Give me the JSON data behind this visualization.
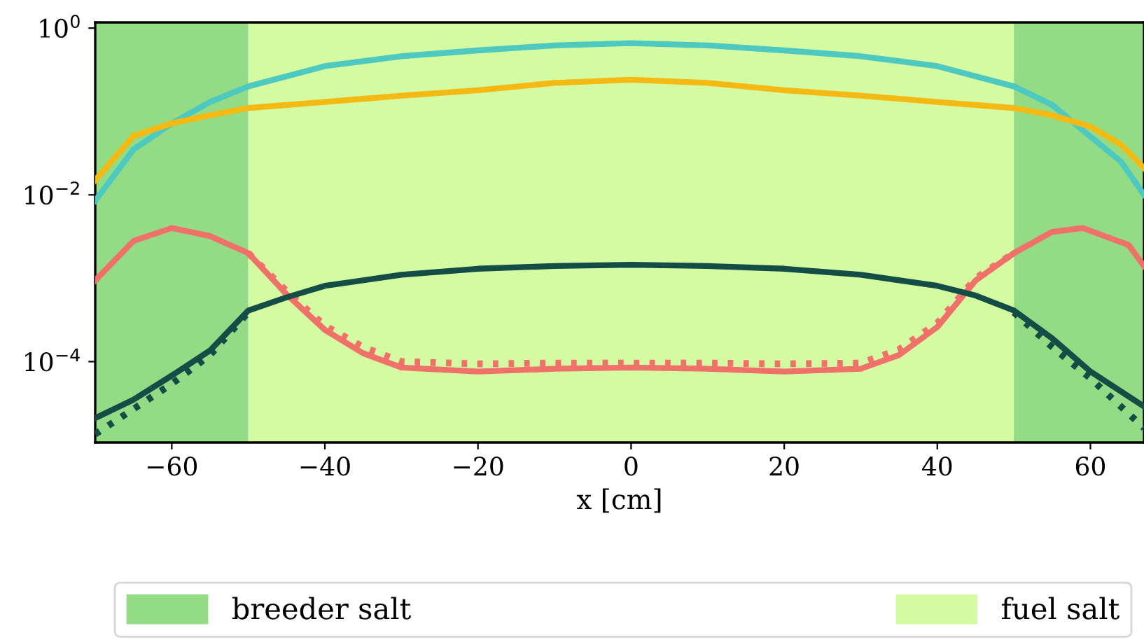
{
  "chart_data": {
    "type": "line",
    "xlabel": "x [cm]",
    "xlim": [
      -70,
      67
    ],
    "xticks": [
      -60,
      -40,
      -20,
      0,
      20,
      40,
      60
    ],
    "ylim": [
      1.07e-05,
      1.17
    ],
    "log": "y",
    "yticks": [
      {
        "value": 1,
        "label": "10$^{0}$"
      },
      {
        "value": 0.01,
        "label": "10$^{−2}$"
      },
      {
        "value": 0.0001,
        "label": "10$^{−4}$"
      }
    ],
    "grid": false,
    "legend": "bottom",
    "bands": [
      {
        "axis": "x",
        "from": -70,
        "to": -50,
        "label": "breeder salt",
        "color": "#93dc85"
      },
      {
        "axis": "x",
        "from": -50,
        "to": 50,
        "label": "fuel salt",
        "color": "#d4fba2"
      },
      {
        "axis": "x",
        "from": 50,
        "to": 67,
        "color": "#93dc85"
      }
    ],
    "series": [
      {
        "color": "#4dc9c0",
        "line_style": "solid",
        "x": [
          -70,
          -65,
          -60,
          -55,
          -50,
          -40,
          -30,
          -20,
          -10,
          0,
          10,
          20,
          30,
          40,
          50,
          55,
          60,
          64,
          67
        ],
        "values": [
          0.0085,
          0.035,
          0.072,
          0.13,
          0.2,
          0.35,
          0.46,
          0.54,
          0.62,
          0.66,
          0.62,
          0.54,
          0.46,
          0.35,
          0.2,
          0.12,
          0.05,
          0.025,
          0.01
        ]
      },
      {
        "color": "#f5b914",
        "line_style": "solid",
        "x": [
          -70,
          -65,
          -60,
          -55,
          -50,
          -40,
          -30,
          -20,
          -10,
          0,
          10,
          20,
          30,
          40,
          50,
          55,
          60,
          64,
          67
        ],
        "values": [
          0.015,
          0.051,
          0.072,
          0.09,
          0.11,
          0.13,
          0.155,
          0.18,
          0.22,
          0.24,
          0.22,
          0.18,
          0.155,
          0.13,
          0.11,
          0.09,
          0.066,
          0.04,
          0.021
        ]
      },
      {
        "color": "#f0706a",
        "line_style": "solid",
        "x": [
          -70,
          -65,
          -60,
          -55,
          -50,
          -45,
          -40,
          -35,
          -30,
          -20,
          -10,
          0,
          10,
          20,
          30,
          35,
          40,
          45,
          50,
          55,
          59,
          65,
          67
        ],
        "values": [
          0.00094,
          0.0028,
          0.004,
          0.0032,
          0.002,
          0.00064,
          0.00024,
          0.000126,
          8.5e-05,
          7.6e-05,
          8.2e-05,
          8.5e-05,
          8.2e-05,
          7.6e-05,
          8.2e-05,
          0.00012,
          0.00026,
          0.00094,
          0.002,
          0.0036,
          0.004,
          0.0025,
          0.0014
        ]
      },
      {
        "color": "#f0706a",
        "line_style": "dotted",
        "x": [
          -50,
          -45,
          -40,
          -35,
          -30,
          -20,
          -10,
          0,
          10,
          20,
          30,
          35,
          40,
          45,
          50
        ],
        "values": [
          0.002,
          0.0007,
          0.00027,
          0.00015,
          0.0001,
          9.4e-05,
          9.6e-05,
          9.6e-05,
          9.6e-05,
          9.4e-05,
          9.6e-05,
          0.00014,
          0.00029,
          0.001,
          0.002
        ]
      },
      {
        "color": "#144d45",
        "line_style": "solid",
        "x": [
          -70,
          -65,
          -60,
          -55,
          -50,
          -45,
          -40,
          -30,
          -20,
          -10,
          0,
          10,
          20,
          30,
          40,
          45,
          50,
          55,
          60,
          67
        ],
        "values": [
          2.1e-05,
          3.5e-05,
          6.8e-05,
          0.000136,
          0.00041,
          0.00059,
          0.00081,
          0.0011,
          0.0013,
          0.0014,
          0.00145,
          0.0014,
          0.0013,
          0.0011,
          0.00081,
          0.00062,
          0.00041,
          0.00019,
          7.6e-05,
          2.9e-05
        ]
      },
      {
        "color": "#144d45",
        "line_style": "dotted",
        "x": [
          -70,
          -65,
          -60,
          -55,
          -50,
          0,
          50,
          55,
          60,
          67
        ],
        "values": [
          1.35e-05,
          2.7e-05,
          5.4e-05,
          0.00012,
          0.00039,
          null,
          0.00039,
          0.00015,
          6.3e-05,
          1.6e-05
        ]
      }
    ]
  }
}
